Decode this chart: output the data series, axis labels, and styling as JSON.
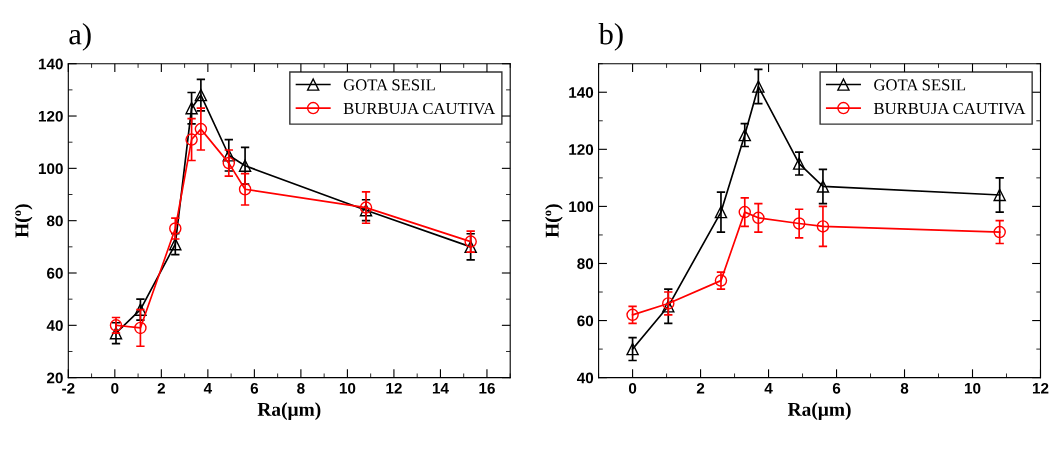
{
  "chart_data": [
    {
      "type": "line",
      "title": "a)",
      "xlabel": "Ra(μm)",
      "ylabel": "H(º)",
      "xlim": [
        -2,
        17
      ],
      "xticks": [
        -2,
        0,
        2,
        4,
        6,
        8,
        10,
        12,
        14,
        16
      ],
      "ylim": [
        20,
        140
      ],
      "yticks": [
        20,
        40,
        60,
        80,
        100,
        120,
        140
      ],
      "legend": "top right",
      "grid": false,
      "x": [
        0.05,
        1.1,
        2.6,
        3.3,
        3.7,
        4.9,
        5.6,
        10.8,
        15.3
      ],
      "series": [
        {
          "name": "GOTA SESIL",
          "color": "#000000",
          "marker": "triangle",
          "values": [
            37,
            46,
            71,
            123,
            128,
            105,
            101,
            84,
            70
          ],
          "errors": [
            4,
            4,
            4,
            6,
            6,
            6,
            7,
            4,
            5
          ]
        },
        {
          "name": "BURBUJA CAUTIVA",
          "color": "#ff0000",
          "marker": "circle",
          "values": [
            40,
            39,
            77,
            111,
            115,
            102,
            92,
            85,
            72
          ],
          "errors": [
            3,
            7,
            4,
            8,
            8,
            5,
            6,
            6,
            4
          ]
        }
      ]
    },
    {
      "type": "line",
      "title": "b)",
      "xlabel": "Ra(μm)",
      "ylabel": "H(º)",
      "xlim": [
        -1,
        12
      ],
      "xticks": [
        0,
        2,
        4,
        6,
        8,
        10,
        12
      ],
      "ylim": [
        40,
        150
      ],
      "yticks": [
        40,
        60,
        80,
        100,
        120,
        140
      ],
      "legend": "top right",
      "grid": false,
      "x": [
        0,
        1.05,
        2.6,
        3.3,
        3.7,
        4.9,
        5.6,
        10.8
      ],
      "series": [
        {
          "name": "GOTA SESIL",
          "color": "#000000",
          "marker": "triangle",
          "values": [
            50,
            65,
            98,
            125,
            142,
            115,
            107,
            104
          ],
          "errors": [
            4,
            6,
            7,
            4,
            6,
            4,
            6,
            6
          ]
        },
        {
          "name": "BURBUJA CAUTIVA",
          "color": "#ff0000",
          "marker": "circle",
          "values": [
            62,
            66,
            74,
            98,
            96,
            94,
            93,
            91
          ],
          "errors": [
            3,
            4,
            3,
            5,
            5,
            5,
            7,
            4
          ]
        }
      ]
    }
  ]
}
